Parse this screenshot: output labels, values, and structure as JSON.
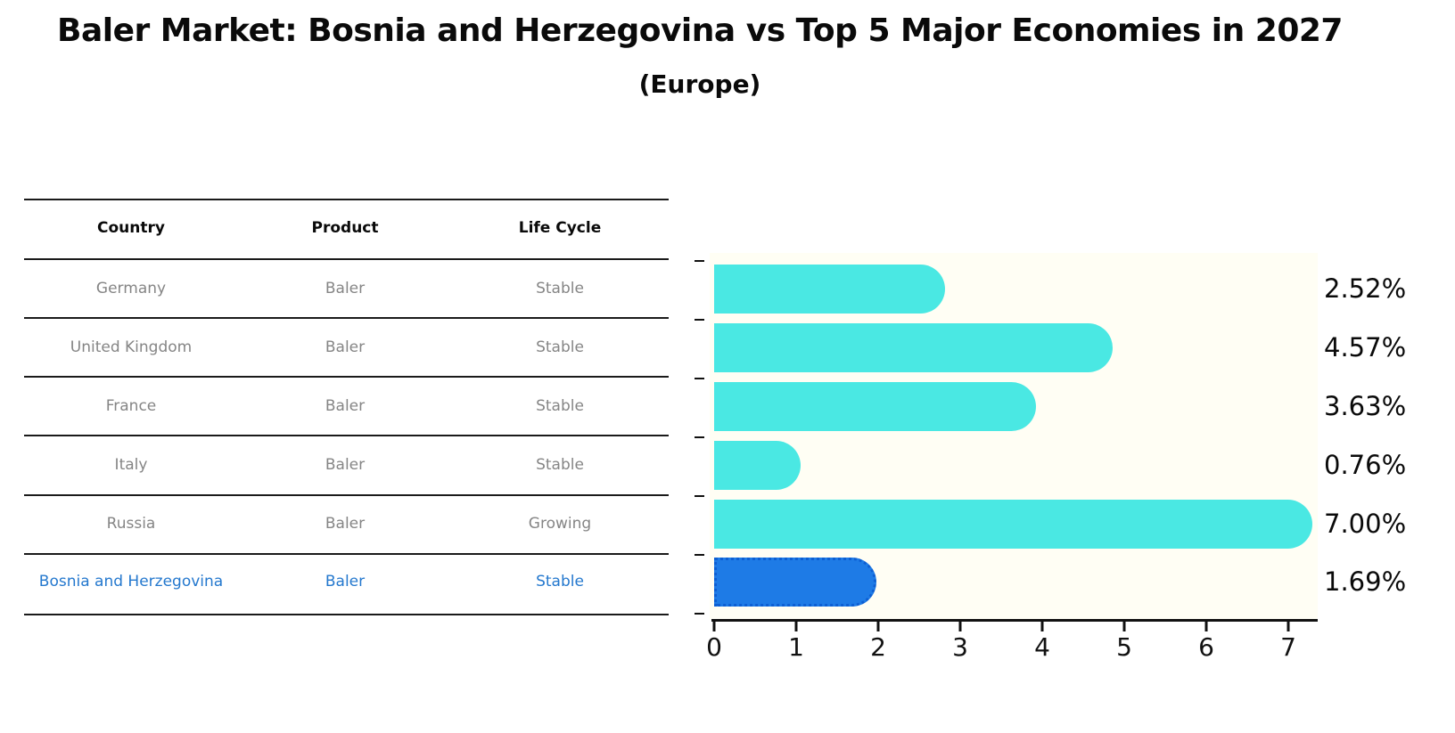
{
  "chart_data": {
    "type": "bar",
    "orientation": "horizontal",
    "title": "Baler Market: Bosnia and Herzegovina vs Top 5 Major Economies in 2027",
    "subtitle": "(Europe)",
    "categories": [
      "Germany",
      "United Kingdom",
      "France",
      "Italy",
      "Russia",
      "Bosnia and Herzegovina"
    ],
    "values": [
      2.52,
      4.57,
      3.63,
      0.76,
      7.0,
      1.69
    ],
    "labels": [
      "2.52%",
      "4.57%",
      "3.63%",
      "0.76%",
      "7.00%",
      "1.69%"
    ],
    "x_ticks": [
      0,
      1,
      2,
      3,
      4,
      5,
      6,
      7
    ],
    "x_tick_labels": [
      "0",
      "1",
      "2",
      "3",
      "4",
      "5",
      "6",
      "7"
    ],
    "xlim": [
      0,
      7.36
    ],
    "grid": false,
    "legend": "none",
    "highlight_index": 5,
    "bar_color": "#4AE8E3",
    "highlight_color": "#1E7BE6",
    "highlight_edge_color": "#0D5FD3",
    "highlight_edge_style": "dotted"
  },
  "table": {
    "headers": [
      "Country",
      "Product",
      "Life Cycle"
    ],
    "rows": [
      {
        "country": "Germany",
        "product": "Baler",
        "life_cycle": "Stable",
        "highlight": false
      },
      {
        "country": "United Kingdom",
        "product": "Baler",
        "life_cycle": "Stable",
        "highlight": false
      },
      {
        "country": "France",
        "product": "Baler",
        "life_cycle": "Stable",
        "highlight": false
      },
      {
        "country": "Italy",
        "product": "Baler",
        "life_cycle": "Stable",
        "highlight": false
      },
      {
        "country": "Russia",
        "product": "Baler",
        "life_cycle": "Growing",
        "highlight": false
      },
      {
        "country": "Bosnia and Herzegovina",
        "product": "Baler",
        "life_cycle": "Stable",
        "highlight": true
      }
    ]
  },
  "colors": {
    "row_text": "#858585",
    "header_text": "#0a0a0a",
    "highlight_text": "#2478CE",
    "axis": "#111111",
    "value_label": "#0a0a0a",
    "plot_background": "#fffef4",
    "figure_background": "#ffffff"
  }
}
